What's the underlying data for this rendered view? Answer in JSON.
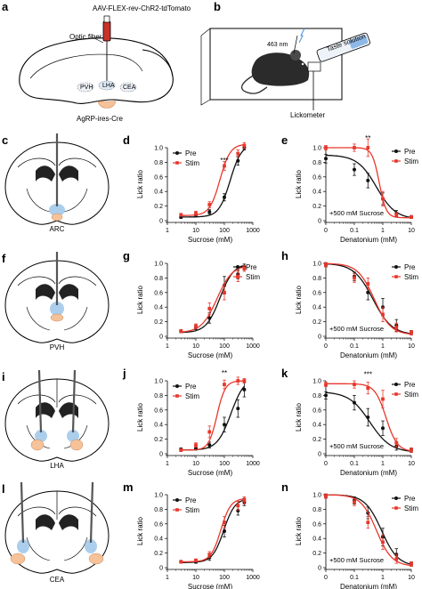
{
  "panels": {
    "a": {
      "letter": "a",
      "virus_label": "AAV-FLEX-rev-ChR2-tdTomato",
      "fiber_label": "Optic fiber",
      "region_labels": [
        "PVH",
        "LHA",
        "CEA"
      ],
      "mouse_label": "AgRP-ires-Cre"
    },
    "b": {
      "letter": "b",
      "wavelength_label": "463 nm",
      "solution_label": "Taste solution",
      "device_label": "Lickometer"
    },
    "c": {
      "letter": "c",
      "region": "ARC"
    },
    "f": {
      "letter": "f",
      "region": "PVH"
    },
    "i": {
      "letter": "i",
      "region": "LHA"
    },
    "l": {
      "letter": "l",
      "region": "CEA"
    }
  },
  "colors": {
    "pre": "#111111",
    "stim": "#e8372c",
    "fiber_led": "#c8322a",
    "brain_target_blue": "#9ec6ea",
    "brain_target_peach": "#f6c29a"
  },
  "chart_data": [
    {
      "type": "line",
      "panel": "d",
      "letter": "d",
      "xscale": "log",
      "xlim": [
        1,
        1000
      ],
      "ylim": [
        0,
        1.0
      ],
      "xticks": [
        "1",
        "10",
        "100",
        "1000"
      ],
      "yticks": [
        "0",
        "0.2",
        "0.4",
        "0.6",
        "0.8",
        "1.0"
      ],
      "xlabel": "Sucrose (mM)",
      "ylabel": "Lick ratio",
      "legend": [
        "Pre",
        "Stim"
      ],
      "legend_position": "top-left",
      "x": [
        3,
        10,
        30,
        100,
        300,
        500
      ],
      "series": [
        {
          "name": "Pre",
          "color": "#111111",
          "values": [
            0.05,
            0.07,
            0.12,
            0.32,
            0.82,
            1.0
          ],
          "errors": [
            0.02,
            0.02,
            0.03,
            0.05,
            0.06,
            0.03
          ]
        },
        {
          "name": "Stim",
          "color": "#e8372c",
          "values": [
            0.08,
            0.1,
            0.22,
            0.75,
            0.92,
            1.03
          ],
          "errors": [
            0.02,
            0.03,
            0.04,
            0.06,
            0.05,
            0.04
          ]
        }
      ],
      "annotations": [
        {
          "text": "***",
          "x": 100,
          "y": 0.82
        }
      ]
    },
    {
      "type": "line",
      "panel": "e",
      "letter": "e",
      "xscale": "log",
      "xlim": [
        0.01,
        10
      ],
      "ylim": [
        0,
        1.0
      ],
      "xticks": [
        "0",
        "0.1",
        "1",
        "10"
      ],
      "yticks": [
        "0",
        "0.2",
        "0.4",
        "0.6",
        "0.8",
        "1.0"
      ],
      "xlabel": "Denatonium (mM)",
      "ylabel": "Lick ratio",
      "legend": [
        "Pre",
        "Stim"
      ],
      "legend_position": "top-right",
      "note": "+500 mM Sucrose",
      "x": [
        0.01,
        0.1,
        0.3,
        1,
        3,
        10
      ],
      "series": [
        {
          "name": "Pre",
          "color": "#111111",
          "values": [
            0.85,
            0.7,
            0.55,
            0.3,
            0.1,
            0.05
          ],
          "errors": [
            0.06,
            0.08,
            0.1,
            0.08,
            0.04,
            0.02
          ]
        },
        {
          "name": "Stim",
          "color": "#e8372c",
          "values": [
            1.0,
            1.0,
            1.0,
            0.3,
            0.08,
            0.05
          ],
          "errors": [
            0.03,
            0.05,
            0.12,
            0.1,
            0.03,
            0.02
          ]
        }
      ],
      "annotations": [
        {
          "text": "**",
          "x": 0.3,
          "y": 1.12
        }
      ]
    },
    {
      "type": "line",
      "panel": "g",
      "letter": "g",
      "xscale": "log",
      "xlim": [
        1,
        1000
      ],
      "ylim": [
        0,
        1.0
      ],
      "xticks": [
        "1",
        "10",
        "100",
        "1000"
      ],
      "yticks": [
        "0",
        "0.2",
        "0.4",
        "0.6",
        "0.8",
        "1.0"
      ],
      "xlabel": "Sucrose (mM)",
      "ylabel": "Lick ratio",
      "legend": [
        "Pre",
        "Stim"
      ],
      "legend_position": "top-right",
      "x": [
        3,
        10,
        30,
        100,
        300,
        500
      ],
      "series": [
        {
          "name": "Pre",
          "color": "#111111",
          "values": [
            0.07,
            0.12,
            0.25,
            0.7,
            0.85,
            0.95
          ],
          "errors": [
            0.02,
            0.03,
            0.07,
            0.12,
            0.06,
            0.04
          ]
        },
        {
          "name": "Stim",
          "color": "#e8372c",
          "values": [
            0.07,
            0.14,
            0.38,
            0.6,
            0.82,
            0.93
          ],
          "errors": [
            0.02,
            0.03,
            0.08,
            0.1,
            0.07,
            0.04
          ]
        }
      ]
    },
    {
      "type": "line",
      "panel": "h",
      "letter": "h",
      "xscale": "log",
      "xlim": [
        0.01,
        10
      ],
      "ylim": [
        0,
        1.0
      ],
      "xticks": [
        "0",
        "0.1",
        "1",
        "10"
      ],
      "yticks": [
        "0",
        "0.2",
        "0.4",
        "0.6",
        "0.8",
        "1.0"
      ],
      "xlabel": "Denatonium (mM)",
      "ylabel": "Lick ratio",
      "legend": [
        "Pre",
        "Stim"
      ],
      "legend_position": "top-right",
      "note": "+500 mM Sucrose",
      "x": [
        0.01,
        0.1,
        0.3,
        1,
        3,
        10
      ],
      "series": [
        {
          "name": "Pre",
          "color": "#111111",
          "values": [
            0.98,
            0.82,
            0.6,
            0.4,
            0.15,
            0.05
          ],
          "errors": [
            0.03,
            0.06,
            0.1,
            0.12,
            0.08,
            0.03
          ]
        },
        {
          "name": "Stim",
          "color": "#e8372c",
          "values": [
            0.98,
            0.8,
            0.72,
            0.3,
            0.12,
            0.05
          ],
          "errors": [
            0.03,
            0.06,
            0.08,
            0.1,
            0.06,
            0.03
          ]
        }
      ]
    },
    {
      "type": "line",
      "panel": "j",
      "letter": "j",
      "xscale": "log",
      "xlim": [
        1,
        1000
      ],
      "ylim": [
        0,
        1.0
      ],
      "xticks": [
        "1",
        "10",
        "100",
        "1000"
      ],
      "yticks": [
        "0",
        "0.2",
        "0.4",
        "0.6",
        "0.8",
        "1.0"
      ],
      "xlabel": "Sucrose (mM)",
      "ylabel": "Lick ratio",
      "legend": [
        "Pre",
        "Stim"
      ],
      "legend_position": "top-left",
      "x": [
        3,
        10,
        30,
        100,
        300,
        500
      ],
      "series": [
        {
          "name": "Pre",
          "color": "#111111",
          "values": [
            0.06,
            0.07,
            0.12,
            0.4,
            0.62,
            0.88
          ],
          "errors": [
            0.02,
            0.02,
            0.04,
            0.1,
            0.12,
            0.1
          ]
        },
        {
          "name": "Stim",
          "color": "#e8372c",
          "values": [
            0.05,
            0.12,
            0.3,
            0.95,
            1.0,
            1.0
          ],
          "errors": [
            0.02,
            0.03,
            0.08,
            0.06,
            0.05,
            0.03
          ]
        }
      ],
      "annotations": [
        {
          "text": "**",
          "x": 100,
          "y": 1.1
        }
      ]
    },
    {
      "type": "line",
      "panel": "k",
      "letter": "k",
      "xscale": "log",
      "xlim": [
        0.01,
        10
      ],
      "ylim": [
        0,
        1.0
      ],
      "xticks": [
        "0",
        "0.1",
        "1",
        "10"
      ],
      "yticks": [
        "0",
        "0.2",
        "0.4",
        "0.6",
        "0.8",
        "1.0"
      ],
      "xlabel": "Denatonium (mM)",
      "ylabel": "Lick ratio",
      "legend": [
        "Pre",
        "Stim"
      ],
      "legend_position": "top-right",
      "note": "+500 mM Sucrose",
      "x": [
        0.01,
        0.1,
        0.3,
        1,
        3,
        10
      ],
      "series": [
        {
          "name": "Pre",
          "color": "#111111",
          "values": [
            0.8,
            0.7,
            0.5,
            0.35,
            0.1,
            0.05
          ],
          "errors": [
            0.05,
            0.1,
            0.12,
            0.1,
            0.05,
            0.03
          ]
        },
        {
          "name": "Stim",
          "color": "#e8372c",
          "values": [
            0.95,
            0.95,
            0.9,
            0.75,
            0.15,
            0.05
          ],
          "errors": [
            0.03,
            0.05,
            0.08,
            0.12,
            0.06,
            0.03
          ]
        }
      ],
      "annotations": [
        {
          "text": "***",
          "x": 0.3,
          "y": 1.08
        }
      ]
    },
    {
      "type": "line",
      "panel": "m",
      "letter": "m",
      "xscale": "log",
      "xlim": [
        1,
        1000
      ],
      "ylim": [
        0,
        1.0
      ],
      "xticks": [
        "1",
        "10",
        "100",
        "1000"
      ],
      "yticks": [
        "0",
        "0.2",
        "0.4",
        "0.6",
        "0.8",
        "1.0"
      ],
      "xlabel": "Sucrose (mM)",
      "ylabel": "Lick ratio",
      "legend": [
        "Pre",
        "Stim"
      ],
      "legend_position": "top-left",
      "x": [
        3,
        10,
        30,
        100,
        300,
        500
      ],
      "series": [
        {
          "name": "Pre",
          "color": "#111111",
          "values": [
            0.08,
            0.08,
            0.14,
            0.5,
            0.78,
            0.9
          ],
          "errors": [
            0.02,
            0.02,
            0.04,
            0.08,
            0.06,
            0.05
          ]
        },
        {
          "name": "Stim",
          "color": "#e8372c",
          "values": [
            0.08,
            0.1,
            0.18,
            0.62,
            0.85,
            0.92
          ],
          "errors": [
            0.02,
            0.02,
            0.04,
            0.08,
            0.06,
            0.05
          ]
        }
      ]
    },
    {
      "type": "line",
      "panel": "n",
      "letter": "n",
      "xscale": "log",
      "xlim": [
        0.01,
        10
      ],
      "ylim": [
        0,
        1.0
      ],
      "xticks": [
        "0",
        "0.1",
        "1",
        "10"
      ],
      "yticks": [
        "0",
        "0.2",
        "0.4",
        "0.6",
        "0.8",
        "1.0"
      ],
      "xlabel": "Denatonium (mM)",
      "ylabel": "Lick ratio",
      "legend": [
        "Pre",
        "Stim"
      ],
      "legend_position": "top-right",
      "note": "+500 mM Sucrose",
      "x": [
        0.01,
        0.1,
        0.3,
        1,
        3,
        10
      ],
      "series": [
        {
          "name": "Pre",
          "color": "#111111",
          "values": [
            0.98,
            0.92,
            0.75,
            0.42,
            0.18,
            0.05
          ],
          "errors": [
            0.03,
            0.05,
            0.08,
            0.12,
            0.08,
            0.03
          ]
        },
        {
          "name": "Stim",
          "color": "#e8372c",
          "values": [
            0.98,
            0.9,
            0.62,
            0.35,
            0.12,
            0.05
          ],
          "errors": [
            0.03,
            0.05,
            0.08,
            0.1,
            0.06,
            0.03
          ]
        }
      ]
    }
  ]
}
